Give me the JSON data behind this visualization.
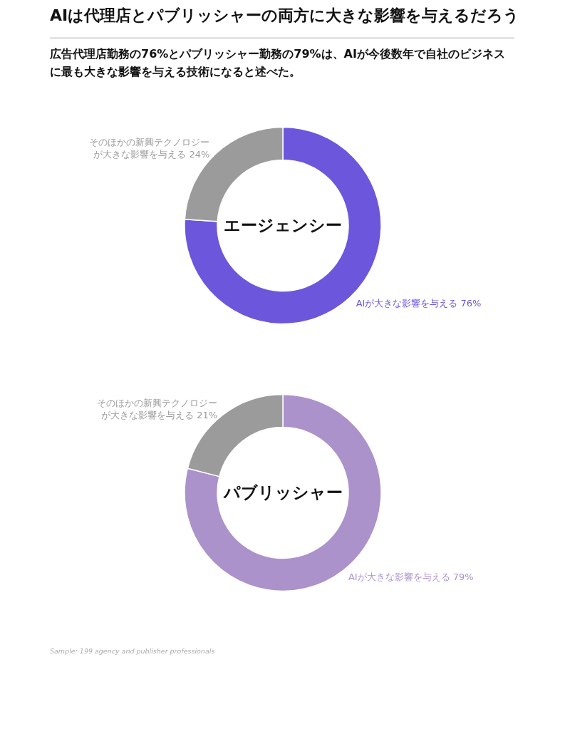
{
  "chart_data": [
    {
      "type": "donut",
      "title": "AIは代理店とパブリッシャーの両方に大きな影響を与えるだろう",
      "subtitle": "広告代理店勤務の76%とパブリッシャー勤務の79%は、AIが今後数年で自社のビジネスに最も大きな影響を与える技術になると述べた。",
      "categories": [
        "AIが大きな影響を与える",
        "そのほかの新興テクノロジーが大きな影響を与える"
      ],
      "values": [
        76,
        24
      ],
      "value_labels": [
        "76%",
        "24%"
      ],
      "colors": [
        "#6c56dc",
        "#9b9b9b"
      ],
      "annotations": [
        "エージェンシー"
      ]
    },
    {
      "type": "donut",
      "categories": [
        "AIが大きな影響を与える",
        "そのほかの新興テクノロジーが大きな影響を与える"
      ],
      "values": [
        79,
        21
      ],
      "value_labels": [
        "79%",
        "21%"
      ],
      "colors": [
        "#ab92cb",
        "#9b9b9b"
      ],
      "annotations": [
        "パブリッシャー",
        "Sample: 199 agency and publisher professionals"
      ]
    }
  ]
}
